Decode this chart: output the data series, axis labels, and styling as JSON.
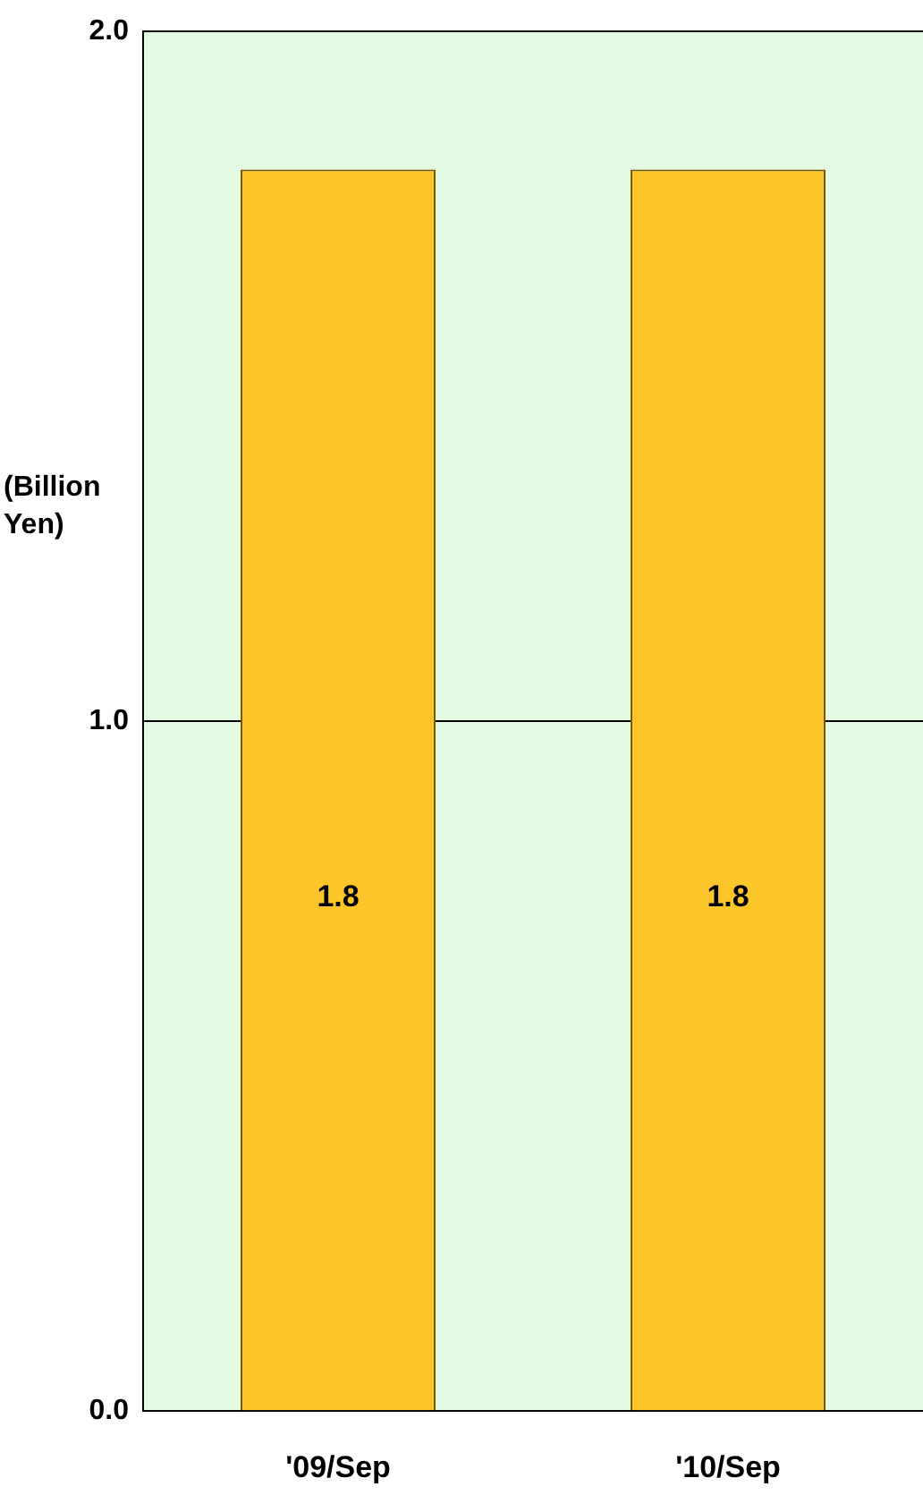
{
  "chart_data": {
    "type": "bar",
    "ylabel": "(Billion Yen)",
    "categories": [
      "'09/Sep",
      "'10/Sep"
    ],
    "values": [
      1.8,
      1.8
    ],
    "color": "#fcc52a",
    "ylim": [
      0,
      2
    ],
    "yticks": [
      {
        "value": 0,
        "label": "0.0"
      },
      {
        "value": 1,
        "label": "1.0"
      },
      {
        "value": 2,
        "label": "2.0"
      }
    ],
    "grid": "y",
    "data_labels": true
  }
}
